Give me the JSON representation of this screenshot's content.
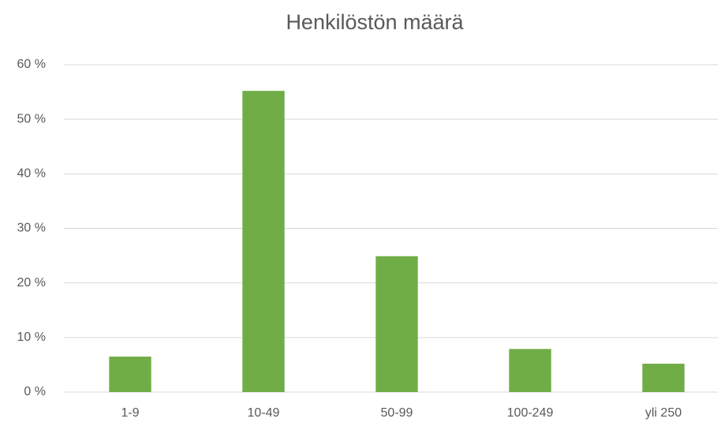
{
  "chart_data": {
    "type": "bar",
    "title": "Henkilöstön määrä",
    "categories": [
      "1-9",
      "10-49",
      "50-99",
      "100-249",
      "yli 250"
    ],
    "values": [
      6.5,
      55.2,
      24.9,
      7.9,
      5.2
    ],
    "color": "#70ad47",
    "ylim": [
      0,
      60
    ],
    "yticks": [
      {
        "value": 0,
        "label": "0 %"
      },
      {
        "value": 10,
        "label": "10 %"
      },
      {
        "value": 20,
        "label": "20 %"
      },
      {
        "value": 30,
        "label": "30 %"
      },
      {
        "value": 40,
        "label": "40 %"
      },
      {
        "value": 50,
        "label": "50 %"
      },
      {
        "value": 60,
        "label": "60 %"
      }
    ],
    "grid": true
  }
}
